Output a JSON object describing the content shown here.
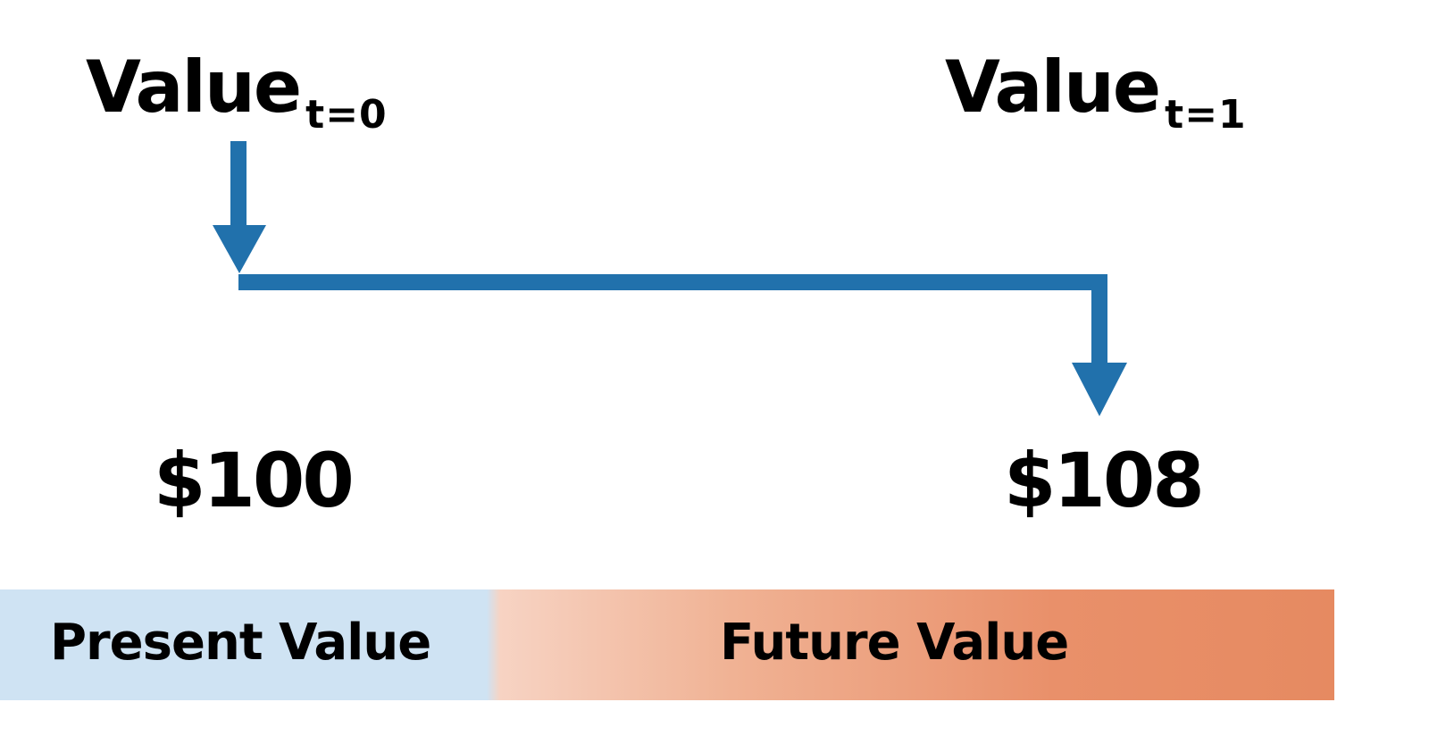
{
  "diagram": {
    "left_label": {
      "main": "Value",
      "subscript": "t=0"
    },
    "right_label": {
      "main": "Value",
      "subscript": "t=1"
    },
    "left_amount": "$100",
    "right_amount": "$108",
    "band": {
      "left_text": "Present Value",
      "right_text": "Future Value"
    }
  },
  "colors": {
    "arrow": "#2171ac",
    "present_band": "#cfe3f3",
    "future_band": "#e68a61",
    "text": "#000000"
  }
}
